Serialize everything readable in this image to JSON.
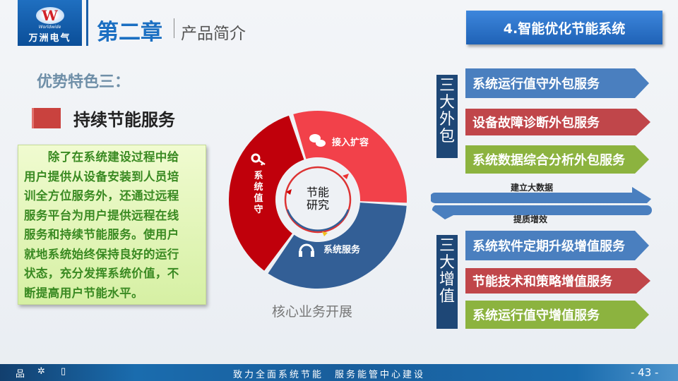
{
  "header": {
    "logo_brand": "万洲电气",
    "logo_en": "Worldwide",
    "logo_letter": "W",
    "chapter": "第二章",
    "subtitle": "产品简介",
    "section_title": "4.智能优化节能系统"
  },
  "left": {
    "advantage_title": "优势特色三：",
    "headline": "持续节能服务",
    "paragraph_lines": [
      "　　除了在系统建设过程中给",
      "用户提供从设备安装到人员培",
      "训全方位服务外，还通过远程",
      "服务平台为用户提供远程在线",
      "服务和持续节能服务。使用户",
      "就地系统始终保持良好的运行",
      "状态，充分发挥系统价值，不",
      "断提高用户节能水平。"
    ]
  },
  "diagram": {
    "center": "节能\n研究",
    "center_lines": [
      "节能",
      "研究"
    ],
    "caption": "核心业务开展",
    "segments": [
      {
        "label": "接入扩容",
        "icon": "chat-bubbles-icon",
        "color": "#f2414a"
      },
      {
        "label": "系统服务",
        "icon": "headphones-icon",
        "color": "#335f96"
      },
      {
        "label": "系统值守",
        "icon": "key-icon",
        "color": "#c0000b"
      }
    ]
  },
  "right": {
    "group1_label": "三大外包",
    "group1_items": [
      {
        "label": "系统运行值守外包服务",
        "color": "blue"
      },
      {
        "label": "设备故障诊断外包服务",
        "color": "red"
      },
      {
        "label": "系统数据综合分析外包服务",
        "color": "green"
      }
    ],
    "flow_top": "建立大数据",
    "flow_bottom": "提质增效",
    "group2_label": "三大增值",
    "group2_items": [
      {
        "label": "系统软件定期升级增值服务",
        "color": "blue"
      },
      {
        "label": "节能技术和策略增值服务",
        "color": "red"
      },
      {
        "label": "系统运行值守增值服务",
        "color": "green"
      }
    ]
  },
  "footer": {
    "slogan": "致力全面系统节能　服务能管中心建设",
    "page": "- 43 -",
    "icons": [
      "network-icon",
      "atom-icon",
      "book-icon"
    ]
  }
}
